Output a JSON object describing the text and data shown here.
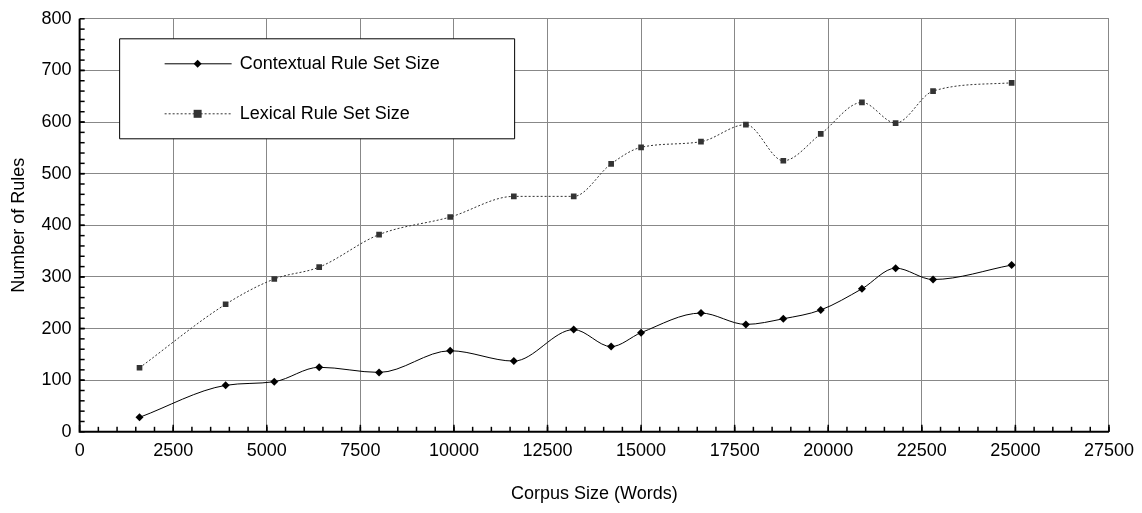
{
  "chart_data": {
    "type": "line",
    "xlabel": "Corpus Size (Words)",
    "ylabel": "Number of Rules",
    "xlim": [
      0,
      27500
    ],
    "xticks": [
      0,
      2500,
      5000,
      7500,
      10000,
      12500,
      15000,
      17500,
      20000,
      22500,
      25000,
      27500
    ],
    "ylim": [
      0,
      800
    ],
    "yticks": [
      0,
      100,
      200,
      300,
      400,
      500,
      600,
      700,
      800
    ],
    "grid": true,
    "legend": "top left",
    "x": [
      1600,
      3900,
      5200,
      6400,
      8000,
      9900,
      11600,
      13200,
      14200,
      15000,
      16600,
      17800,
      18800,
      19800,
      20900,
      21800,
      22800,
      24900
    ],
    "series": [
      {
        "name": "Contextual Rule Set Size",
        "color": "#000000",
        "marker": "diamond",
        "line_style": "solid",
        "values": [
          28,
          90,
          97,
          125,
          115,
          157,
          137,
          198,
          165,
          192,
          230,
          208,
          219,
          236,
          277,
          317,
          295,
          323
        ]
      },
      {
        "name": "Lexical Rule Set Size",
        "color": "#333333",
        "marker": "square",
        "line_style": "dotted",
        "values": [
          124,
          247,
          296,
          319,
          382,
          416,
          456,
          456,
          519,
          551,
          562,
          595,
          525,
          577,
          638,
          598,
          660,
          676
        ]
      }
    ]
  }
}
